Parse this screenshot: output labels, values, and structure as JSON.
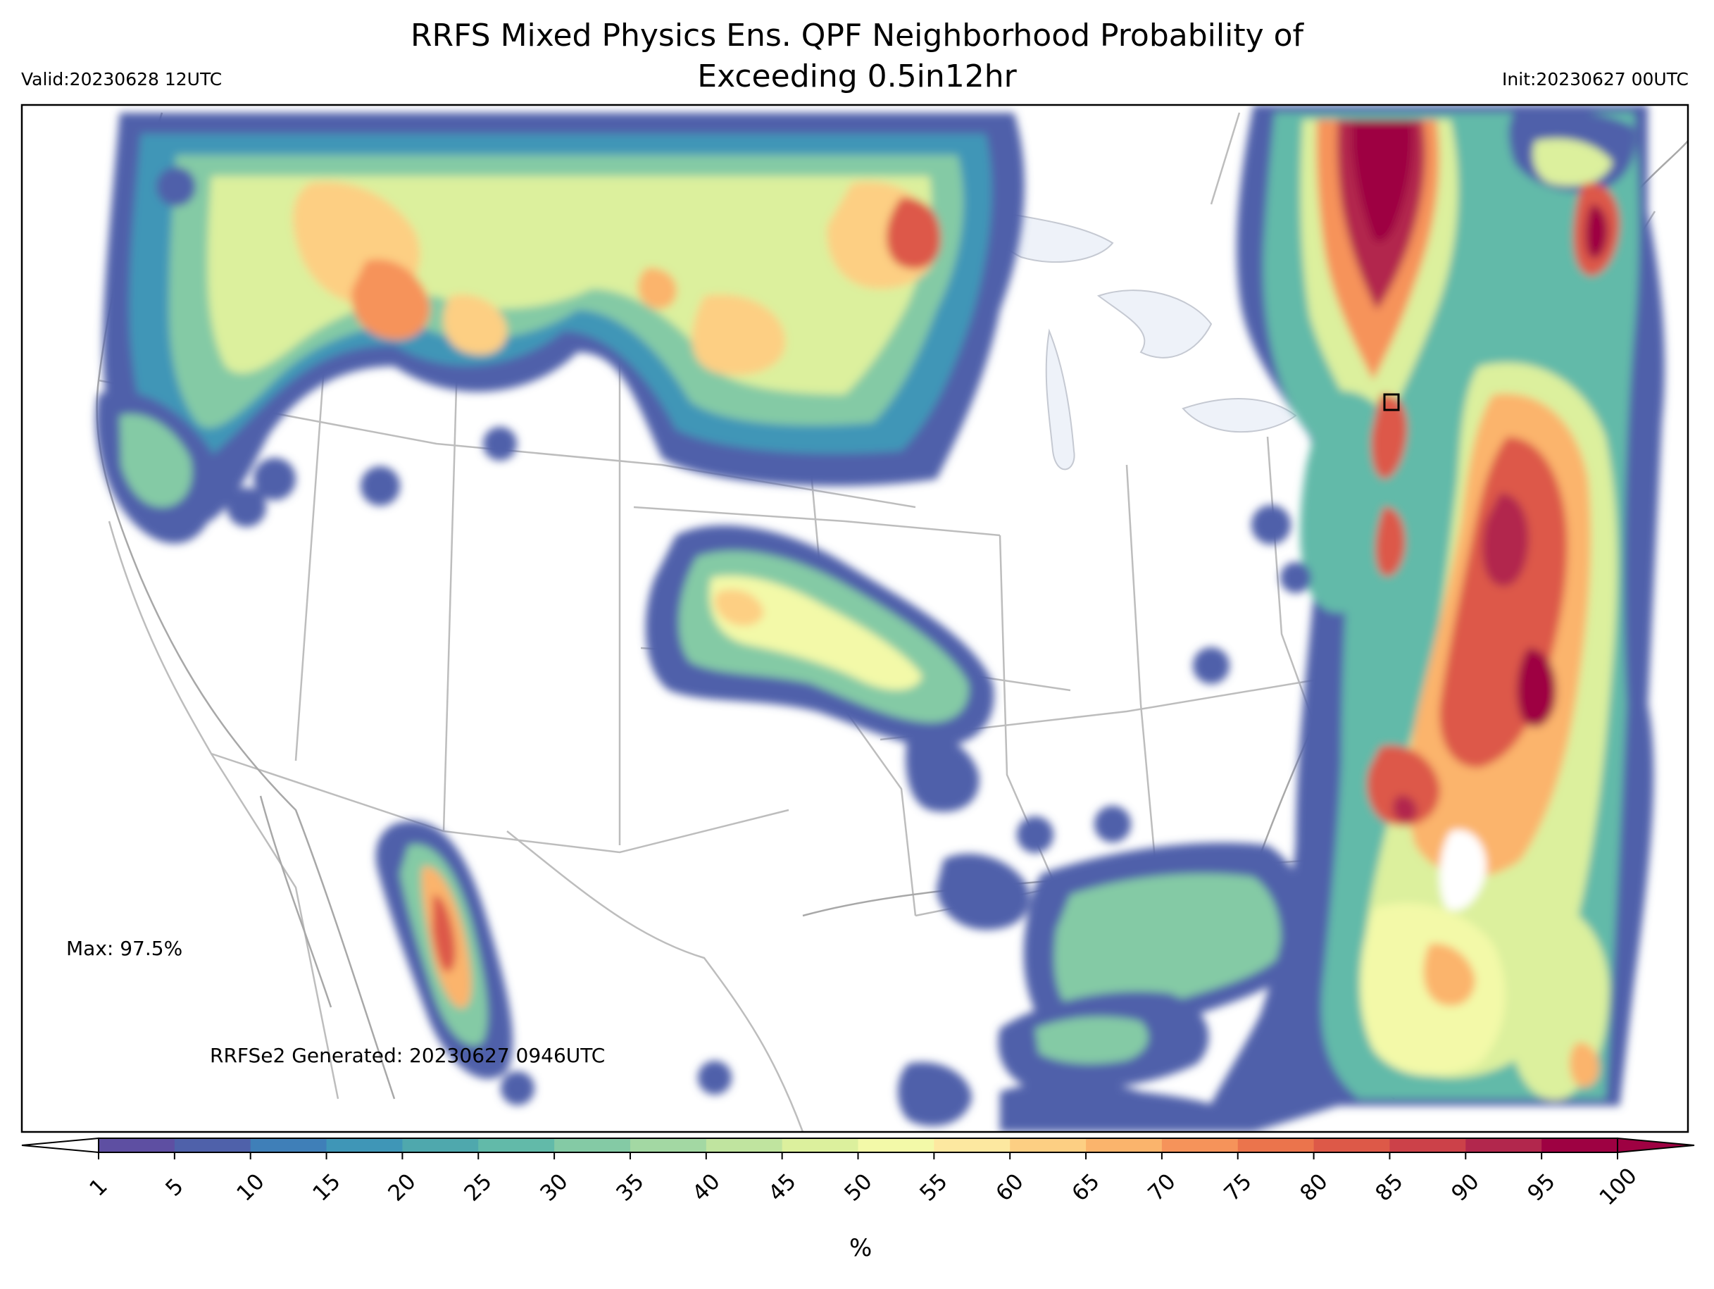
{
  "header": {
    "title": "RRFS Mixed Physics Ens. QPF Neighborhood Probability of Exceeding 0.5in12hr",
    "title_line1": "RRFS Mixed Physics Ens. QPF Neighborhood Probability of",
    "title_line2": "Exceeding 0.5in12hr",
    "valid": "Valid:20230628 12UTC",
    "init": "Init:20230627 00UTC"
  },
  "annotations": {
    "max": "Max: 97.5%",
    "generated": "RRFSe2 Generated: 20230627 0946UTC"
  },
  "colorbar": {
    "unit": "%",
    "ticks": [
      "1",
      "5",
      "10",
      "15",
      "20",
      "25",
      "30",
      "35",
      "40",
      "45",
      "50",
      "55",
      "60",
      "65",
      "70",
      "75",
      "80",
      "85",
      "90",
      "95",
      "100"
    ],
    "colors": [
      "#5e4fa2",
      "#4f61aa",
      "#3f7fb8",
      "#3f96b7",
      "#4fa8ad",
      "#62baa9",
      "#84caa5",
      "#a3d8a3",
      "#c0e49f",
      "#dcf09d",
      "#f3f9a8",
      "#fde8a0",
      "#fdcf83",
      "#fbb46c",
      "#f6935a",
      "#eb744c",
      "#dd5948",
      "#cc4149",
      "#b2274d",
      "#9e0142"
    ],
    "under_color": "#ffffff",
    "over_color": "#9e0142"
  },
  "map": {
    "projection": "Lambert Conformal (CONUS)",
    "features": [
      "state borders",
      "coastlines",
      "great lakes",
      "country borders"
    ],
    "lake_color": "#eef2f9",
    "border_color": "#bdbdbd"
  }
}
